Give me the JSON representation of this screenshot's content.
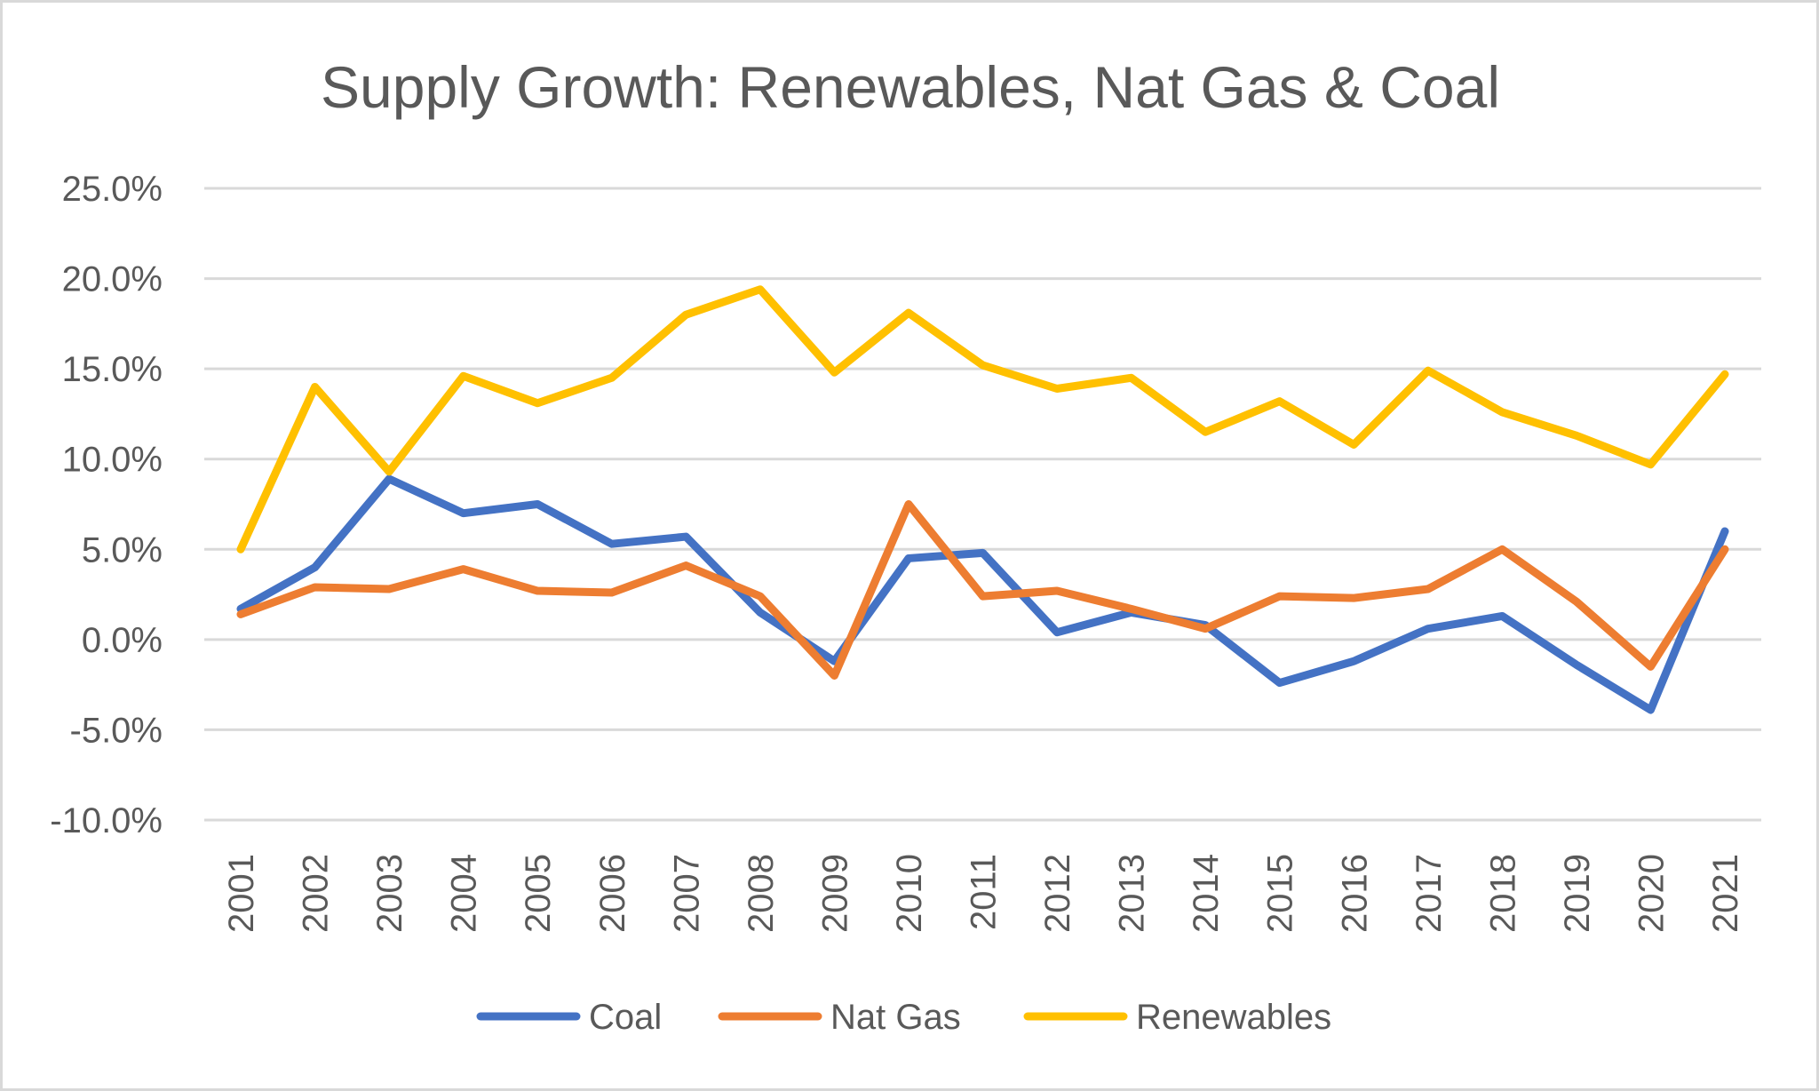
{
  "chart_data": {
    "type": "line",
    "title": "Supply Growth: Renewables, Nat Gas & Coal",
    "xlabel": "",
    "ylabel": "",
    "categories": [
      "2001",
      "2002",
      "2003",
      "2004",
      "2005",
      "2006",
      "2007",
      "2008",
      "2009",
      "2010",
      "2011",
      "2012",
      "2013",
      "2014",
      "2015",
      "2016",
      "2017",
      "2018",
      "2019",
      "2020",
      "2021"
    ],
    "ylim": [
      -10,
      25
    ],
    "yticks": [
      -10,
      -5,
      0,
      5,
      10,
      15,
      20,
      25
    ],
    "ytick_labels": [
      "-10.0%",
      "-5.0%",
      "0.0%",
      "5.0%",
      "10.0%",
      "15.0%",
      "20.0%",
      "25.0%"
    ],
    "y_unit": "%",
    "grid": true,
    "legend_position": "bottom",
    "series": [
      {
        "name": "Coal",
        "color": "#4472C4",
        "values": [
          1.7,
          4.0,
          8.9,
          7.0,
          7.5,
          5.3,
          5.7,
          1.5,
          -1.2,
          4.5,
          4.8,
          0.4,
          1.5,
          0.8,
          -2.4,
          -1.2,
          0.6,
          1.3,
          -1.4,
          -3.9,
          6.0
        ]
      },
      {
        "name": "Nat Gas",
        "color": "#ED7D31",
        "values": [
          1.4,
          2.9,
          2.8,
          3.9,
          2.7,
          2.6,
          4.1,
          2.4,
          -2.0,
          7.5,
          2.4,
          2.7,
          1.7,
          0.6,
          2.4,
          2.3,
          2.8,
          5.0,
          2.1,
          -1.5,
          5.0
        ]
      },
      {
        "name": "Renewables",
        "color": "#FFC000",
        "values": [
          5.0,
          14.0,
          9.3,
          14.6,
          13.1,
          14.5,
          18.0,
          19.4,
          14.8,
          18.1,
          15.2,
          13.9,
          14.5,
          11.5,
          13.2,
          10.8,
          14.9,
          12.6,
          11.3,
          9.7,
          14.7
        ]
      }
    ]
  }
}
